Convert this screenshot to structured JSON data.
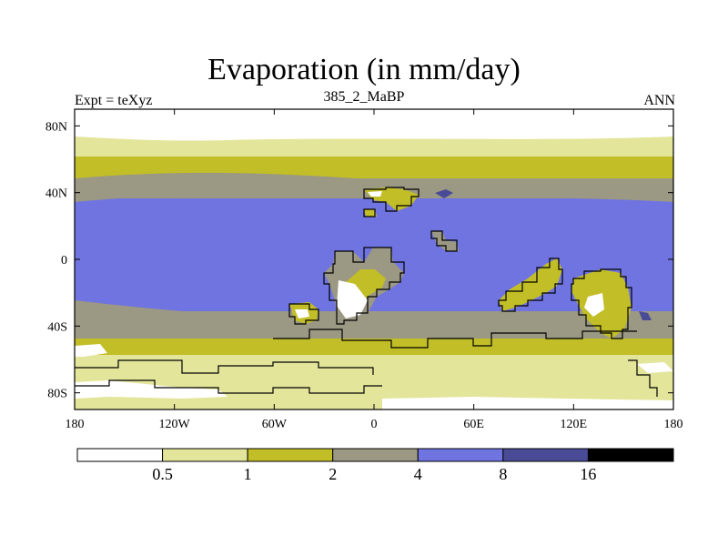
{
  "title": "Evaporation (in mm/day)",
  "subtitle_left": "Expt = teXyz",
  "subtitle_center": "385_2_MaBP",
  "subtitle_right": "ANN",
  "colors": {
    "c0": "#ffffff",
    "c1": "#e3e59a",
    "c2": "#c2be27",
    "c3": "#9b9883",
    "c4": "#7074e0",
    "c5": "#4a4b96",
    "c6": "#000000",
    "coast": "#000000"
  },
  "map": {
    "lon_range": [
      -180,
      180
    ],
    "lat_range": [
      -90,
      90
    ],
    "x_ticks": [
      "180",
      "120W",
      "60W",
      "0",
      "60E",
      "120E",
      "180"
    ],
    "y_ticks": [
      "80N",
      "40N",
      "0",
      "40S",
      "80S"
    ]
  },
  "colorbar": {
    "levels": [
      "0.5",
      "1",
      "2",
      "4",
      "8",
      "16"
    ]
  }
}
